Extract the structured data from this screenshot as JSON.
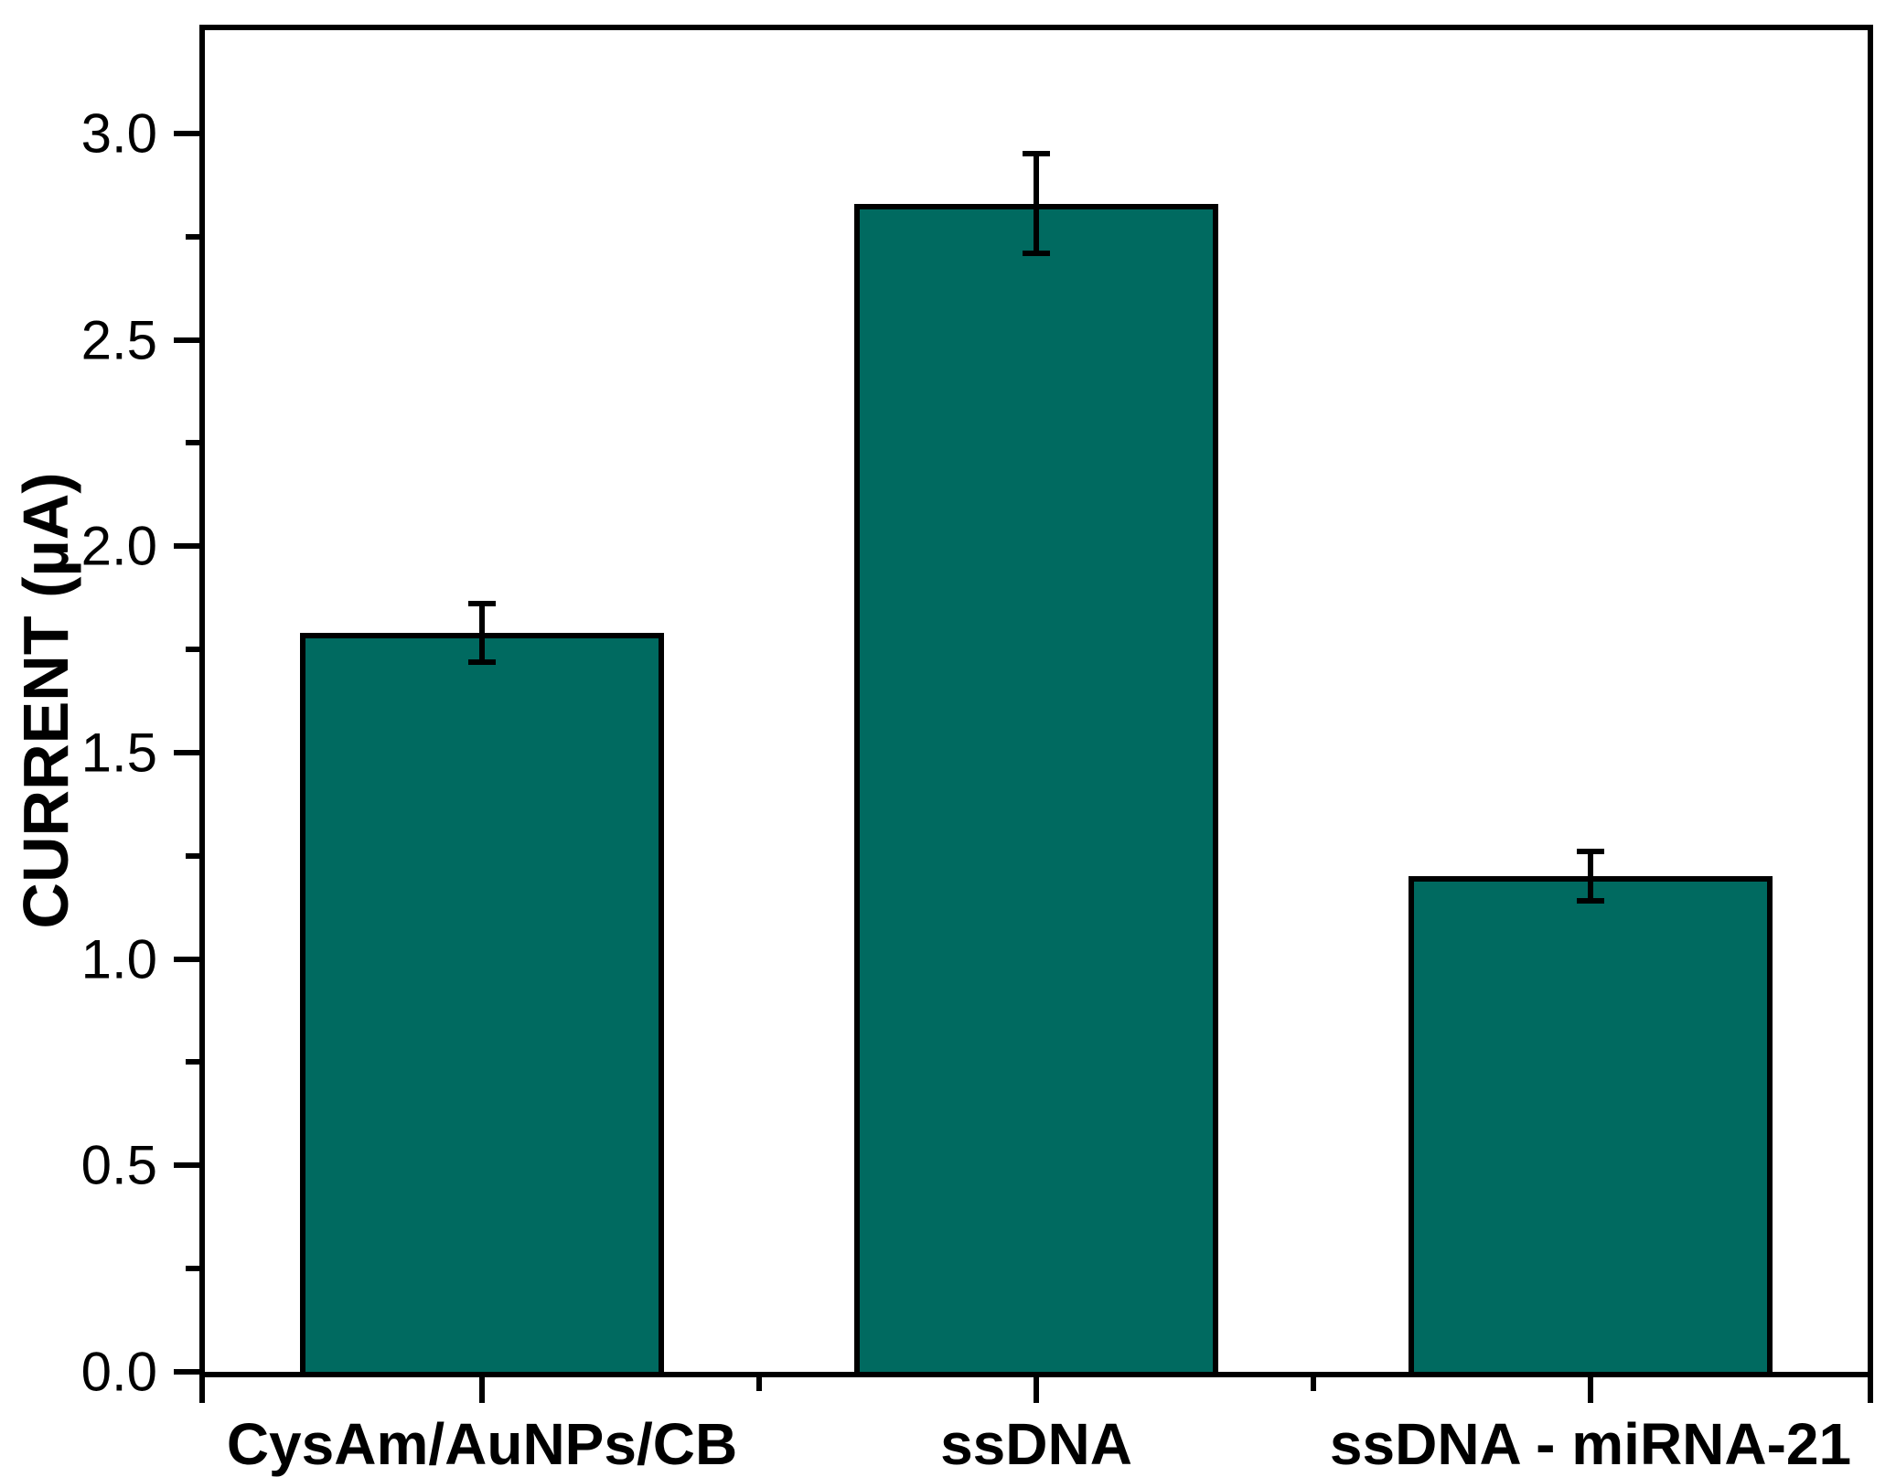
{
  "chart_data": {
    "type": "bar",
    "title": "",
    "categories": [
      "CysAm/AuNPs/CB",
      "ssDNA",
      "ssDNA - miRNA-21"
    ],
    "values": [
      1.79,
      2.83,
      1.2
    ],
    "errors": [
      0.07,
      0.12,
      0.06
    ],
    "xlabel": "",
    "ylabel": "CURRENT (µA)",
    "ylim": [
      0,
      3.25
    ],
    "yticks_major": [
      0.0,
      0.5,
      1.0,
      1.5,
      2.0,
      2.5,
      3.0
    ],
    "ytick_labels": [
      "0.0",
      "0.5",
      "1.0",
      "1.5",
      "2.0",
      "2.5",
      "3.0"
    ],
    "yticks_minor": [
      0.25,
      0.75,
      1.25,
      1.75,
      2.25,
      2.75
    ],
    "grid": false,
    "legend_position": "none",
    "bar_color": "#006A60",
    "bar_edge_color": "#000000",
    "error_color": "#000000",
    "axis_color": "#000000",
    "background_color": "#ffffff"
  }
}
